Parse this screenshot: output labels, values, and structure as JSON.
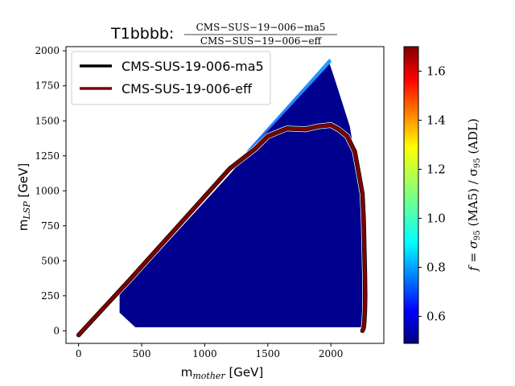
{
  "chart_data": {
    "type": "heatmap",
    "title": "T1bbbb:",
    "title_fraction": {
      "numerator": "CMS−SUS−19−006−ma5",
      "denominator": "CMS−SUS−19−006−eff"
    },
    "xlabel": "m_mother [GeV]",
    "xlabel_main": "m",
    "xlabel_sub": "mother",
    "xlabel_unit": " [GeV]",
    "ylabel": "m_LSP [GeV]",
    "ylabel_main": "m",
    "ylabel_sub": "LSP",
    "ylabel_unit": " [GeV]",
    "xlim": [
      -100,
      2420
    ],
    "ylim": [
      -90,
      2030
    ],
    "xticks": [
      0,
      500,
      1000,
      1500,
      2000
    ],
    "yticks": [
      0,
      250,
      500,
      750,
      1000,
      1250,
      1500,
      1750,
      2000
    ],
    "colorbar": {
      "label": "f = σ95 (MA5) / σ95 (ADL)",
      "label_prefix": "f = σ",
      "label_sub1": "95",
      "label_mid": " (MA5) / σ",
      "label_sub2": "95",
      "label_suffix": " (ADL)",
      "range": [
        0.49,
        1.7
      ],
      "ticks": [
        0.6,
        0.8,
        1.0,
        1.2,
        1.4,
        1.6
      ],
      "tick_labels": [
        "0.6",
        "0.8",
        "1.0",
        "1.2",
        "1.4",
        "1.6"
      ],
      "colormap": "jet"
    },
    "heatmap_region": {
      "fill_value": 0.5,
      "outline": [
        [
          325,
          260
        ],
        [
          325,
          130
        ],
        [
          450,
          25
        ],
        [
          2250,
          25
        ],
        [
          2290,
          120
        ],
        [
          2280,
          550
        ],
        [
          2240,
          980
        ],
        [
          2150,
          1460
        ],
        [
          2030,
          1800
        ],
        [
          1980,
          1935
        ],
        [
          1200,
          1120
        ]
      ],
      "diagonal_band": [
        [
          1330,
          1280
        ],
        [
          1990,
          1945
        ],
        [
          2005,
          1920
        ],
        [
          1360,
          1290
        ]
      ],
      "diagonal_band_value": 0.68
    },
    "legend": {
      "position": "top-left",
      "entries": [
        {
          "label": "CMS-SUS-19-006-ma5",
          "color": "#000000"
        },
        {
          "label": "CMS-SUS-19-006-eff",
          "color": "#800000"
        }
      ]
    },
    "series": [
      {
        "name": "CMS-SUS-19-006-eff",
        "color": "#800000",
        "x": [
          0,
          400,
          800,
          1200,
          1400,
          1500,
          1650,
          1800,
          1900,
          2000,
          2060,
          2130,
          2190,
          2220,
          2250,
          2260,
          2265,
          2270,
          2272,
          2270,
          2265,
          2260,
          2250
        ],
        "y": [
          -30,
          360,
          760,
          1160,
          1300,
          1390,
          1445,
          1440,
          1460,
          1470,
          1440,
          1390,
          1280,
          1130,
          980,
          800,
          600,
          400,
          250,
          150,
          60,
          20,
          0
        ]
      },
      {
        "name": "CMS-SUS-19-006-ma5",
        "color": "#000000",
        "x": [
          0,
          400,
          800,
          1200,
          1400,
          1500,
          1650,
          1800,
          1900,
          2000,
          2060,
          2130,
          2190,
          2220,
          2250,
          2260,
          2265,
          2270,
          2272,
          2270,
          2265,
          2260,
          2250
        ],
        "y": [
          -30,
          360,
          760,
          1160,
          1300,
          1390,
          1445,
          1440,
          1460,
          1470,
          1440,
          1390,
          1280,
          1130,
          980,
          800,
          600,
          400,
          250,
          150,
          60,
          20,
          0
        ]
      }
    ]
  }
}
